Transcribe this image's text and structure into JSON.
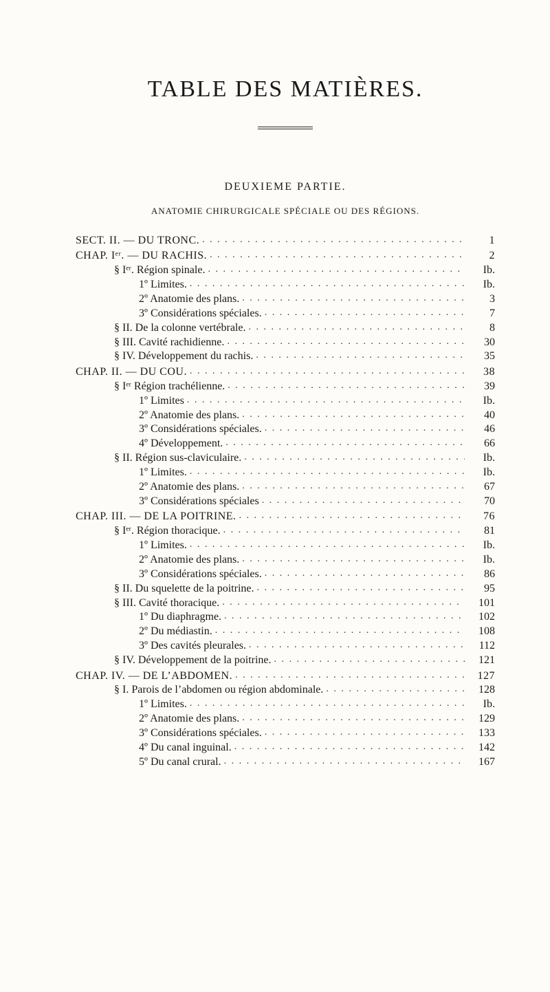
{
  "title": "TABLE DES MATIÈRES.",
  "subtitle": "DEUXIEME PARTIE.",
  "heading": "ANATOMIE CHIRURGICALE SPÉCIALE OU DES RÉGIONS.",
  "entries": [
    {
      "indent": 0,
      "label": "SECT. II. — DU TRONC.",
      "page": "1",
      "cls": "sc lead chap"
    },
    {
      "indent": 0,
      "label": "CHAP. Iᵉʳ. — DU RACHIS.",
      "page": "2",
      "cls": "sc lead chap"
    },
    {
      "indent": 1,
      "label": "§ Iᵉʳ. Région spinale.",
      "page": "Ib."
    },
    {
      "indent": 2,
      "label": "1º Limites.",
      "page": "Ib."
    },
    {
      "indent": 2,
      "label": "2º Anatomie des plans.",
      "page": "3"
    },
    {
      "indent": 2,
      "label": "3º Considérations spéciales.",
      "page": "7"
    },
    {
      "indent": 1,
      "label": "§ II. De la colonne vertébrale.",
      "page": "8"
    },
    {
      "indent": 1,
      "label": "§ III. Cavité rachidienne.",
      "page": "30"
    },
    {
      "indent": 1,
      "label": "§ IV. Développement du rachis.",
      "page": "35"
    },
    {
      "indent": 0,
      "label": "CHAP. II. — DU COU.",
      "page": "38",
      "cls": "sc lead chap"
    },
    {
      "indent": 1,
      "label": "§ Iᵉʳ Région trachélienne.",
      "page": "39"
    },
    {
      "indent": 2,
      "label": "1º Limites",
      "page": "Ib."
    },
    {
      "indent": 2,
      "label": "2º Anatomie des plans.",
      "page": "40"
    },
    {
      "indent": 2,
      "label": "3º Considérations spéciales.",
      "page": "46"
    },
    {
      "indent": 2,
      "label": "4º Développement.",
      "page": "66"
    },
    {
      "indent": 1,
      "label": "§ II. Région sus-claviculaire.",
      "page": "Ib."
    },
    {
      "indent": 2,
      "label": "1º Limites.",
      "page": "Ib."
    },
    {
      "indent": 2,
      "label": "2º Anatomie des plans.",
      "page": "67"
    },
    {
      "indent": 2,
      "label": "3º Considérations spéciales",
      "page": "70"
    },
    {
      "indent": 0,
      "label": "CHAP. III. — DE LA POITRINE.",
      "page": "76",
      "cls": "sc lead chap"
    },
    {
      "indent": 1,
      "label": "§ Iᵉʳ. Région thoracique.",
      "page": "81"
    },
    {
      "indent": 2,
      "label": "1º Limites.",
      "page": "Ib."
    },
    {
      "indent": 2,
      "label": "2º Anatomie des plans.",
      "page": "Ib."
    },
    {
      "indent": 2,
      "label": "3º Considérations spéciales.",
      "page": "86"
    },
    {
      "indent": 1,
      "label": "§ II. Du squelette de la poitrine.",
      "page": "95"
    },
    {
      "indent": 1,
      "label": "§ III. Cavité thoracique.",
      "page": "101"
    },
    {
      "indent": 2,
      "label": "1º Du diaphragme.",
      "page": "102"
    },
    {
      "indent": 2,
      "label": "2º Du médiastin.",
      "page": "108"
    },
    {
      "indent": 2,
      "label": "3º Des cavités pleurales.",
      "page": "112"
    },
    {
      "indent": 1,
      "label": "§ IV. Développement de la poitrine.",
      "page": "121"
    },
    {
      "indent": 0,
      "label": "CHAP. IV. — DE L’ABDOMEN.",
      "page": "127",
      "cls": "sc lead chap"
    },
    {
      "indent": 1,
      "label": "§ I. Parois de l’abdomen ou région abdominale.",
      "page": "128"
    },
    {
      "indent": 2,
      "label": "1º Limites.",
      "page": "Ib."
    },
    {
      "indent": 2,
      "label": "2º Anatomie des plans.",
      "page": "129"
    },
    {
      "indent": 2,
      "label": "3º Considérations spéciales.",
      "page": "133"
    },
    {
      "indent": 2,
      "label": "4º Du canal inguinal.",
      "page": "142"
    },
    {
      "indent": 2,
      "label": "5º Du canal crural.",
      "page": "167"
    }
  ]
}
